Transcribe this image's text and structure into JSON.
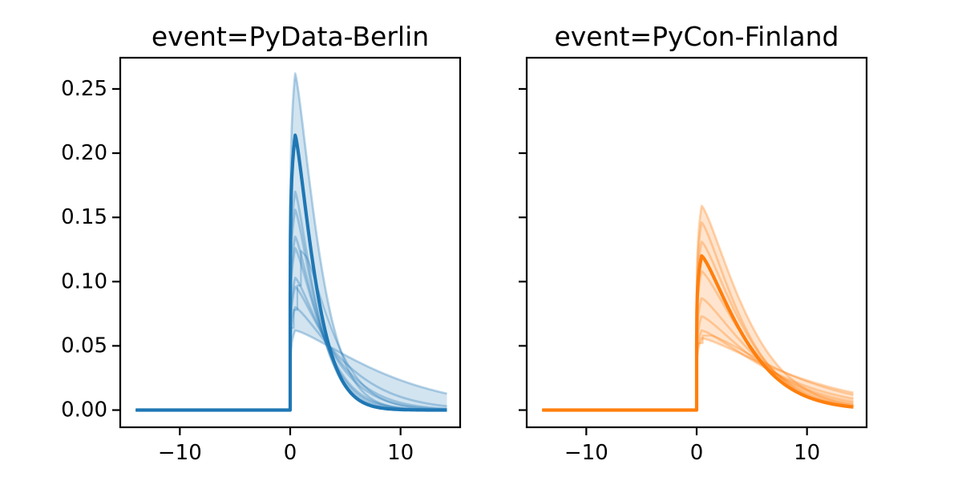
{
  "chart_data": {
    "type": "line",
    "description": "Two-panel posterior predictive density plot; many translucent sample curves with a credible band and an opaque mean curve per panel",
    "panels": [
      {
        "title": "event=PyData-Berlin",
        "color": "#1f77b4",
        "main_curve": {
          "peak": 0.214,
          "scale": 2.3
        },
        "sample_curves": [
          {
            "peak": 0.262,
            "scale": 2.7
          },
          {
            "peak": 0.17,
            "scale": 2.45
          },
          {
            "peak": 0.156,
            "scale": 2.6
          },
          {
            "peak": 0.135,
            "scale": 2.9
          },
          {
            "peak": 0.126,
            "scale": 3.1
          },
          {
            "peak": 0.103,
            "scale": 3.9
          },
          {
            "peak": 0.096,
            "scale": 4.3
          },
          {
            "peak": 0.08,
            "scale": 5.5
          },
          {
            "peak": 0.062,
            "scale": 9.7
          }
        ],
        "step_curve": {
          "points": [
            [
              0.02,
              0.064
            ],
            [
              0.32,
              0.064
            ],
            [
              0.32,
              0.078
            ],
            [
              0.65,
              0.078
            ],
            [
              0.65,
              0.097
            ],
            [
              0.97,
              0.097
            ],
            [
              0.97,
              0.124
            ],
            [
              1.4,
              0.12
            ]
          ],
          "tail_scale": 3.3
        }
      },
      {
        "title": "event=PyCon-Finland",
        "color": "#ff7f0e",
        "main_curve": {
          "peak": 0.12,
          "scale": 4.8
        },
        "sample_curves": [
          {
            "peak": 0.159,
            "scale": 5.0
          },
          {
            "peak": 0.146,
            "scale": 4.6
          },
          {
            "peak": 0.131,
            "scale": 4.9
          },
          {
            "peak": 0.108,
            "scale": 5.4
          },
          {
            "peak": 0.087,
            "scale": 6.2
          },
          {
            "peak": 0.073,
            "scale": 7.0
          },
          {
            "peak": 0.062,
            "scale": 8.2
          },
          {
            "peak": 0.056,
            "scale": 10.5
          }
        ],
        "step_curve": {
          "points": [
            [
              0.02,
              0.052
            ],
            [
              0.55,
              0.052
            ],
            [
              0.55,
              0.058
            ],
            [
              1.3,
              0.058
            ]
          ],
          "tail_scale": 9.0
        }
      }
    ],
    "x_domain": [
      -14,
      14.2
    ],
    "xlim": [
      -15.4,
      15.4
    ],
    "ylim": [
      -0.0134,
      0.2743
    ],
    "xticks": [
      -10,
      0,
      10
    ],
    "xtick_labels": [
      "−10",
      "0",
      "10"
    ],
    "yticks": [
      0.0,
      0.05,
      0.1,
      0.15,
      0.2,
      0.25
    ],
    "ytick_labels": [
      "0.00",
      "0.05",
      "0.10",
      "0.15",
      "0.20",
      "0.25"
    ],
    "curve_shape": {
      "rise_mode": 0.45,
      "rise_exponent": 0.15,
      "decay_exponent": 1.3
    },
    "axis_color": "#000000",
    "background": "#ffffff"
  }
}
